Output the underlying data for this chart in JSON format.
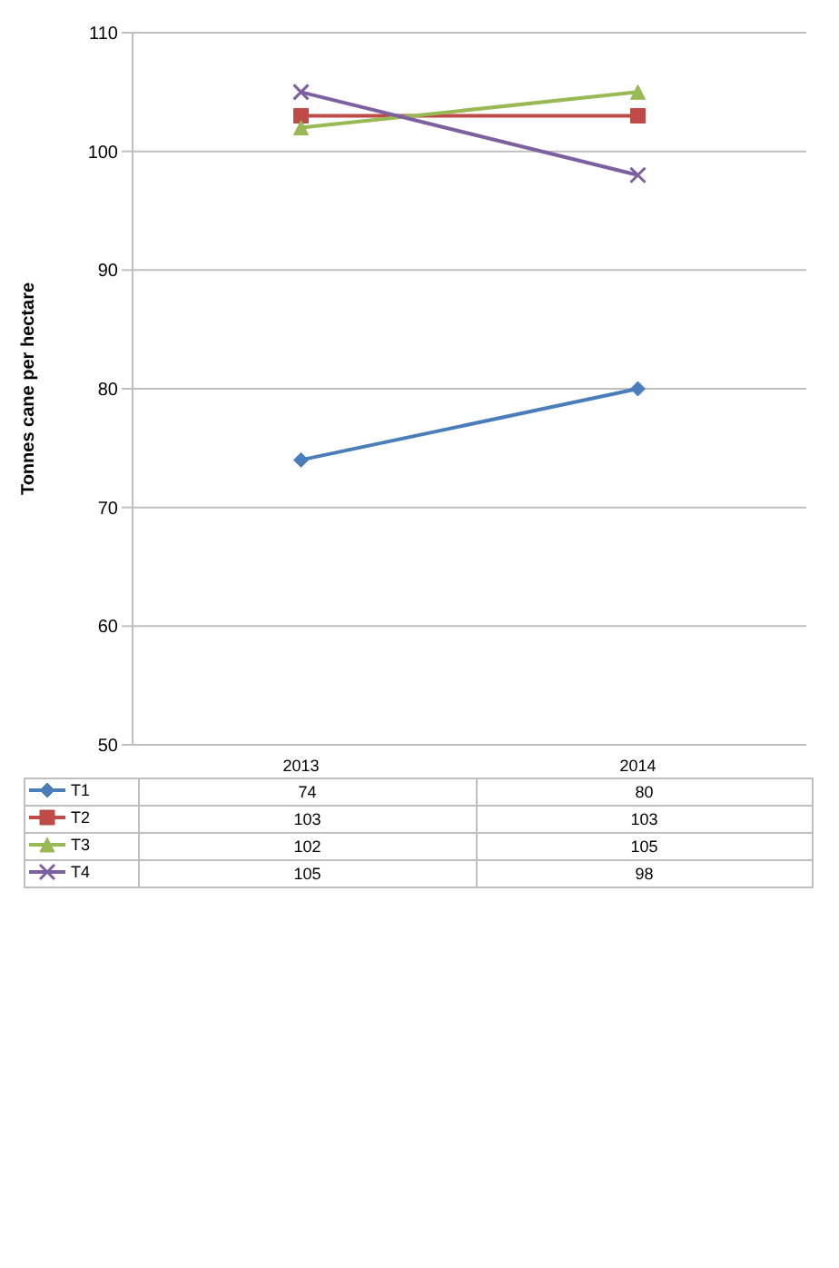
{
  "chart_data": {
    "type": "line",
    "ylabel": "Tonnes cane per hectare",
    "categories": [
      "2013",
      "2014"
    ],
    "series": [
      {
        "name": "T1",
        "color": "#4a7ebb",
        "values": [
          74,
          80
        ],
        "marker": "diamond"
      },
      {
        "name": "T2",
        "color": "#be4b48",
        "values": [
          103,
          103
        ],
        "marker": "square"
      },
      {
        "name": "T3",
        "color": "#98b954",
        "values": [
          102,
          105
        ],
        "marker": "triangle"
      },
      {
        "name": "T4",
        "color": "#7d60a0",
        "values": [
          105,
          98
        ],
        "marker": "cross"
      }
    ],
    "ylim": [
      50,
      110
    ],
    "yticks": [
      50,
      60,
      70,
      80,
      90,
      100,
      110
    ],
    "grid": "y",
    "legend": "bottom",
    "data_labels": true
  }
}
